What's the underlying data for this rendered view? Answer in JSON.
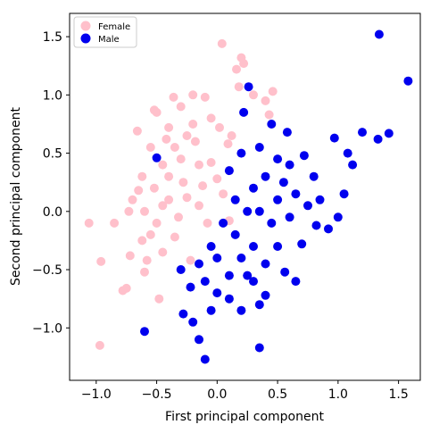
{
  "chart_data": {
    "type": "scatter",
    "xlabel": "First principal component",
    "ylabel": "Second principal component",
    "xlim": [
      -1.22,
      1.68
    ],
    "ylim": [
      -1.45,
      1.7
    ],
    "x_ticks": [
      -1.0,
      -0.5,
      0.0,
      0.5,
      1.0,
      1.5
    ],
    "y_ticks": [
      -1.0,
      -0.5,
      0.0,
      0.5,
      1.0,
      1.5
    ],
    "x_tick_labels": [
      "−1.0",
      "−0.5",
      "0.0",
      "0.5",
      "1.0",
      "1.5"
    ],
    "y_tick_labels": [
      "−1.0",
      "−0.5",
      "0.0",
      "0.5",
      "1.0",
      "1.5"
    ],
    "grid": false,
    "legend_position": "top-left",
    "series": [
      {
        "name": "Female",
        "color": "#ffc0cb",
        "points": [
          [
            -0.97,
            -1.15
          ],
          [
            -0.96,
            -0.43
          ],
          [
            -1.06,
            -0.1
          ],
          [
            -0.85,
            -0.1
          ],
          [
            -0.75,
            -0.66
          ],
          [
            -0.78,
            -0.68
          ],
          [
            -0.73,
            0.0
          ],
          [
            -0.65,
            0.18
          ],
          [
            -0.66,
            0.69
          ],
          [
            -0.52,
            0.87
          ],
          [
            -0.5,
            0.85
          ],
          [
            -0.36,
            0.98
          ],
          [
            -0.3,
            0.9
          ],
          [
            -0.2,
            1.0
          ],
          [
            -0.1,
            0.98
          ],
          [
            0.04,
            1.44
          ],
          [
            0.2,
            1.32
          ],
          [
            0.22,
            1.27
          ],
          [
            0.16,
            1.22
          ],
          [
            0.18,
            1.07
          ],
          [
            0.3,
            1.0
          ],
          [
            0.46,
            1.03
          ],
          [
            0.4,
            0.95
          ],
          [
            0.43,
            0.83
          ],
          [
            0.09,
            0.58
          ],
          [
            -0.25,
            0.65
          ],
          [
            -0.4,
            0.72
          ],
          [
            -0.55,
            0.55
          ],
          [
            -0.62,
            0.3
          ],
          [
            -0.7,
            0.1
          ],
          [
            -0.58,
            -0.42
          ],
          [
            -0.6,
            -0.52
          ],
          [
            -0.48,
            -0.75
          ],
          [
            -0.55,
            -0.2
          ],
          [
            -0.45,
            0.05
          ],
          [
            -0.4,
            0.3
          ],
          [
            -0.3,
            0.45
          ],
          [
            -0.18,
            0.6
          ],
          [
            -0.05,
            0.42
          ],
          [
            -0.35,
            -0.22
          ],
          [
            -0.25,
            0.12
          ],
          [
            -0.12,
            0.22
          ],
          [
            0.0,
            0.28
          ],
          [
            0.1,
            0.35
          ],
          [
            -0.45,
            -0.35
          ],
          [
            -0.35,
            0.55
          ],
          [
            -0.2,
            0.75
          ],
          [
            0.02,
            0.72
          ],
          [
            -0.08,
            -0.1
          ],
          [
            0.1,
            -0.08
          ],
          [
            -0.22,
            -0.42
          ],
          [
            -0.52,
            0.2
          ],
          [
            -0.62,
            -0.25
          ],
          [
            -0.4,
            0.1
          ],
          [
            -0.28,
            0.25
          ],
          [
            -0.15,
            0.05
          ],
          [
            -0.32,
            -0.05
          ],
          [
            -0.5,
            -0.1
          ],
          [
            -0.45,
            0.4
          ],
          [
            -0.15,
            0.4
          ],
          [
            0.05,
            0.15
          ],
          [
            -0.6,
            0.0
          ],
          [
            -0.05,
            0.8
          ],
          [
            0.12,
            0.65
          ],
          [
            -0.42,
            0.62
          ],
          [
            -0.72,
            -0.38
          ]
        ]
      },
      {
        "name": "Male",
        "color": "#0000ee",
        "points": [
          [
            1.34,
            1.52
          ],
          [
            1.58,
            1.12
          ],
          [
            1.42,
            0.67
          ],
          [
            1.33,
            0.62
          ],
          [
            1.2,
            0.68
          ],
          [
            0.97,
            0.63
          ],
          [
            1.08,
            0.5
          ],
          [
            1.12,
            0.4
          ],
          [
            1.05,
            0.15
          ],
          [
            1.0,
            -0.05
          ],
          [
            0.92,
            -0.15
          ],
          [
            0.22,
            0.85
          ],
          [
            0.26,
            1.07
          ],
          [
            0.45,
            0.75
          ],
          [
            0.58,
            0.68
          ],
          [
            0.6,
            0.4
          ],
          [
            0.72,
            0.48
          ],
          [
            0.8,
            0.3
          ],
          [
            0.85,
            0.1
          ],
          [
            0.7,
            -0.28
          ],
          [
            0.56,
            -0.52
          ],
          [
            0.65,
            -0.6
          ],
          [
            0.4,
            -0.72
          ],
          [
            0.35,
            -0.8
          ],
          [
            0.2,
            -0.85
          ],
          [
            0.1,
            -0.75
          ],
          [
            -0.05,
            -0.85
          ],
          [
            -0.2,
            -0.95
          ],
          [
            -0.28,
            -0.88
          ],
          [
            -0.15,
            -1.1
          ],
          [
            -0.1,
            -1.27
          ],
          [
            0.35,
            -1.17
          ],
          [
            -0.6,
            -1.03
          ],
          [
            -0.5,
            0.46
          ],
          [
            0.15,
            0.1
          ],
          [
            0.3,
            0.2
          ],
          [
            0.4,
            0.3
          ],
          [
            0.5,
            0.1
          ],
          [
            0.45,
            -0.1
          ],
          [
            0.3,
            -0.3
          ],
          [
            0.2,
            -0.4
          ],
          [
            0.1,
            -0.55
          ],
          [
            0.0,
            -0.4
          ],
          [
            -0.1,
            -0.6
          ],
          [
            -0.05,
            -0.3
          ],
          [
            0.05,
            -0.1
          ],
          [
            0.25,
            0.0
          ],
          [
            0.35,
            0.0
          ],
          [
            0.15,
            -0.2
          ],
          [
            0.55,
            0.25
          ],
          [
            0.65,
            0.15
          ],
          [
            0.6,
            -0.05
          ],
          [
            0.5,
            -0.3
          ],
          [
            0.4,
            -0.45
          ],
          [
            0.25,
            -0.55
          ],
          [
            -0.15,
            -0.45
          ],
          [
            -0.22,
            -0.65
          ],
          [
            0.1,
            0.35
          ],
          [
            0.2,
            0.5
          ],
          [
            0.35,
            0.55
          ],
          [
            0.5,
            0.45
          ],
          [
            0.75,
            0.05
          ],
          [
            0.82,
            -0.12
          ],
          [
            0.3,
            -0.6
          ],
          [
            0.0,
            -0.7
          ],
          [
            -0.3,
            -0.5
          ]
        ]
      }
    ]
  }
}
